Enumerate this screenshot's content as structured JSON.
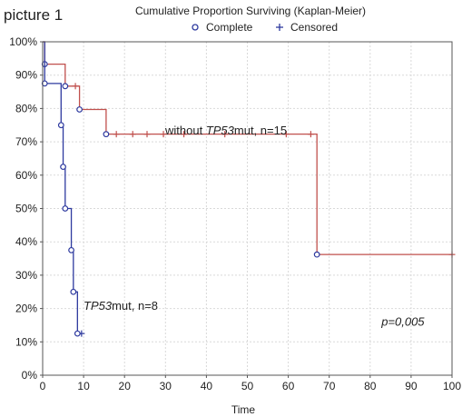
{
  "corner_label": "picture 1",
  "chart_data": {
    "type": "line",
    "title": "Cumulative Proportion Surviving (Kaplan-Meier)",
    "xlabel": "Time",
    "ylabel": "",
    "xlim": [
      0,
      100
    ],
    "ylim": [
      0,
      100
    ],
    "xticks": [
      0,
      10,
      20,
      30,
      40,
      50,
      60,
      70,
      80,
      90,
      100
    ],
    "yticks": [
      0,
      10,
      20,
      30,
      40,
      50,
      60,
      70,
      80,
      90,
      100
    ],
    "y_unit": "%",
    "grid": true,
    "legend": {
      "placement": "top-center",
      "entries": [
        {
          "label": "Complete",
          "marker": "circle"
        },
        {
          "label": "Censored",
          "marker": "plus"
        }
      ]
    },
    "series": [
      {
        "label_pre": "without ",
        "label_italic": "TP53",
        "label_post": "mut, n=15",
        "color": "#c0504d",
        "step_points": [
          [
            0,
            100
          ],
          [
            0.5,
            93.3
          ],
          [
            5.5,
            86.7
          ],
          [
            9,
            79.7
          ],
          [
            15.5,
            72.3
          ],
          [
            67,
            36.2
          ],
          [
            100,
            36.2
          ]
        ],
        "complete_events": [
          [
            0.5,
            93.3
          ],
          [
            5.5,
            86.7
          ],
          [
            9,
            79.7
          ],
          [
            15.5,
            72.3
          ],
          [
            67,
            36.2
          ]
        ],
        "censored": [
          [
            8,
            86.7
          ],
          [
            18,
            72.3
          ],
          [
            22,
            72.3
          ],
          [
            25.5,
            72.3
          ],
          [
            29.5,
            72.3
          ],
          [
            34.5,
            72.3
          ],
          [
            44.5,
            72.3
          ],
          [
            59.5,
            72.3
          ],
          [
            65.5,
            72.3
          ],
          [
            100,
            36.2
          ]
        ]
      },
      {
        "label_pre": "",
        "label_italic": "TP53",
        "label_post": "mut, n=8",
        "color": "#2e3a9f",
        "step_points": [
          [
            0,
            100
          ],
          [
            0.5,
            87.5
          ],
          [
            4.5,
            75
          ],
          [
            5,
            62.5
          ],
          [
            5.5,
            50
          ],
          [
            7,
            37.5
          ],
          [
            7.5,
            25
          ],
          [
            8.5,
            12.5
          ],
          [
            9.5,
            12.5
          ]
        ],
        "complete_events": [
          [
            0.5,
            87.5
          ],
          [
            4.5,
            75
          ],
          [
            5,
            62.5
          ],
          [
            5.5,
            50
          ],
          [
            7,
            37.5
          ],
          [
            7.5,
            25
          ],
          [
            8.5,
            12.5
          ]
        ],
        "censored": [
          [
            9.5,
            12.5
          ]
        ]
      }
    ],
    "annotations": [
      {
        "text": "p=0,005",
        "style": "italic",
        "x": 88,
        "y": 16
      }
    ]
  }
}
